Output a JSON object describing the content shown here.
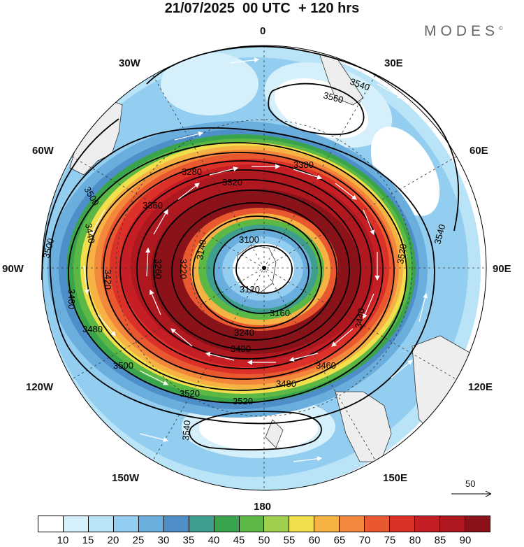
{
  "header": {
    "title": "21/07/2025  00 UTC  + 120 hrs",
    "brand": "MODES",
    "brand_mark": "©"
  },
  "map": {
    "projection": "south-polar-stereographic",
    "variable": "geopotential height (contours) and wind speed (shaded) with wind vectors",
    "longitude_labels": {
      "top": "0",
      "bottom": "180",
      "left": "90W",
      "right": "90E",
      "upper_left_30": "30W",
      "upper_left_60": "60W",
      "upper_right_30": "30E",
      "upper_right_60": "60E",
      "lower_left_120": "120W",
      "lower_left_150": "150W",
      "lower_right_120": "120E",
      "lower_right_150": "150E"
    },
    "contour_labels": [
      "3100",
      "3120",
      "3140",
      "3160",
      "3220",
      "3240",
      "3260",
      "3280",
      "3320",
      "3360",
      "3380",
      "3400",
      "3420",
      "3440",
      "3460",
      "3480",
      "3500",
      "3520",
      "3540",
      "3560"
    ],
    "reference_vector": "50"
  },
  "colorbar": {
    "colors": [
      "#ffffff",
      "#d6f0fb",
      "#b9e3f7",
      "#93cdef",
      "#6aaede",
      "#4f8fc9",
      "#3f9f8f",
      "#3aa44c",
      "#5cb845",
      "#9fcf4c",
      "#f2df4c",
      "#f6b344",
      "#f3873b",
      "#e9582f",
      "#db3128",
      "#c51f25",
      "#b01820",
      "#8b1219"
    ],
    "labels": [
      "10",
      "15",
      "20",
      "25",
      "30",
      "35",
      "40",
      "45",
      "50",
      "55",
      "60",
      "65",
      "70",
      "75",
      "80",
      "85",
      "90"
    ]
  }
}
